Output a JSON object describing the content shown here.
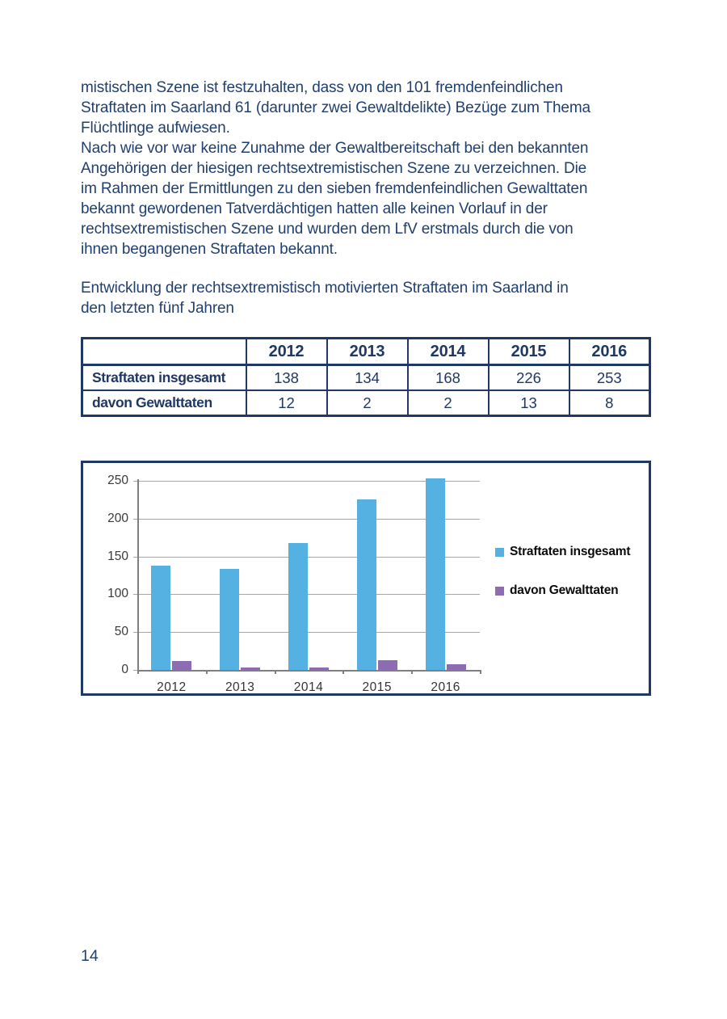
{
  "footer": {
    "page_number": "14"
  },
  "paragraphs": {
    "intro_lines": [
      "mistischen Szene ist festzuhalten, dass von den 101 fremdenfeindlichen",
      "Straftaten im Saarland 61 (darunter zwei Gewaltdelikte) Bezüge zum Thema",
      "Flüchtlinge aufwiesen.",
      "Nach wie vor war keine Zunahme der Gewaltbereitschaft bei den bekannten",
      "Angehörigen der hiesigen rechtsextremistischen Szene zu verzeichnen. Die",
      "im Rahmen der Ermittlungen zu den sieben fremdenfeindlichen Gewalttaten",
      "bekannt gewordenen Tatverdächtigen hatten alle keinen Vorlauf in der",
      "rechtsextremistischen Szene und wurden dem LfV erstmals durch die von",
      "ihnen begangenen Straftaten bekannt."
    ],
    "caption_lines": [
      "Entwicklung der rechtsextremistisch motivierten Straftaten im Saarland in",
      "den letzten fünf Jahren"
    ]
  },
  "table": {
    "columns": [
      "",
      "2012",
      "2013",
      "2014",
      "2015",
      "2016"
    ],
    "rows": [
      {
        "label": "Straftaten insgesamt",
        "values": [
          "138",
          "134",
          "168",
          "226",
          "253"
        ]
      },
      {
        "label": "davon Gewalttaten",
        "values": [
          "12",
          "2",
          "2",
          "13",
          "8"
        ]
      }
    ]
  },
  "chart_data": {
    "type": "bar",
    "categories": [
      "2012",
      "2013",
      "2014",
      "2015",
      "2016"
    ],
    "series": [
      {
        "name": "Straftaten insgesamt",
        "color": "#55B1E2",
        "values": [
          138,
          134,
          168,
          226,
          253
        ]
      },
      {
        "name": "davon Gewalttaten",
        "color": "#8D6CB2",
        "values": [
          12,
          2,
          2,
          13,
          8
        ]
      }
    ],
    "title": "",
    "xlabel": "",
    "ylabel": "",
    "ylim": [
      0,
      250
    ],
    "ytick_step": 50,
    "grid": true,
    "legend_position": "right"
  },
  "colors": {
    "body_text": "#21406F",
    "table_border": "#1F3864",
    "bar_blue": "#55B1E2",
    "bar_purple": "#8D6CB2",
    "gridline": "#A6A6A6"
  }
}
